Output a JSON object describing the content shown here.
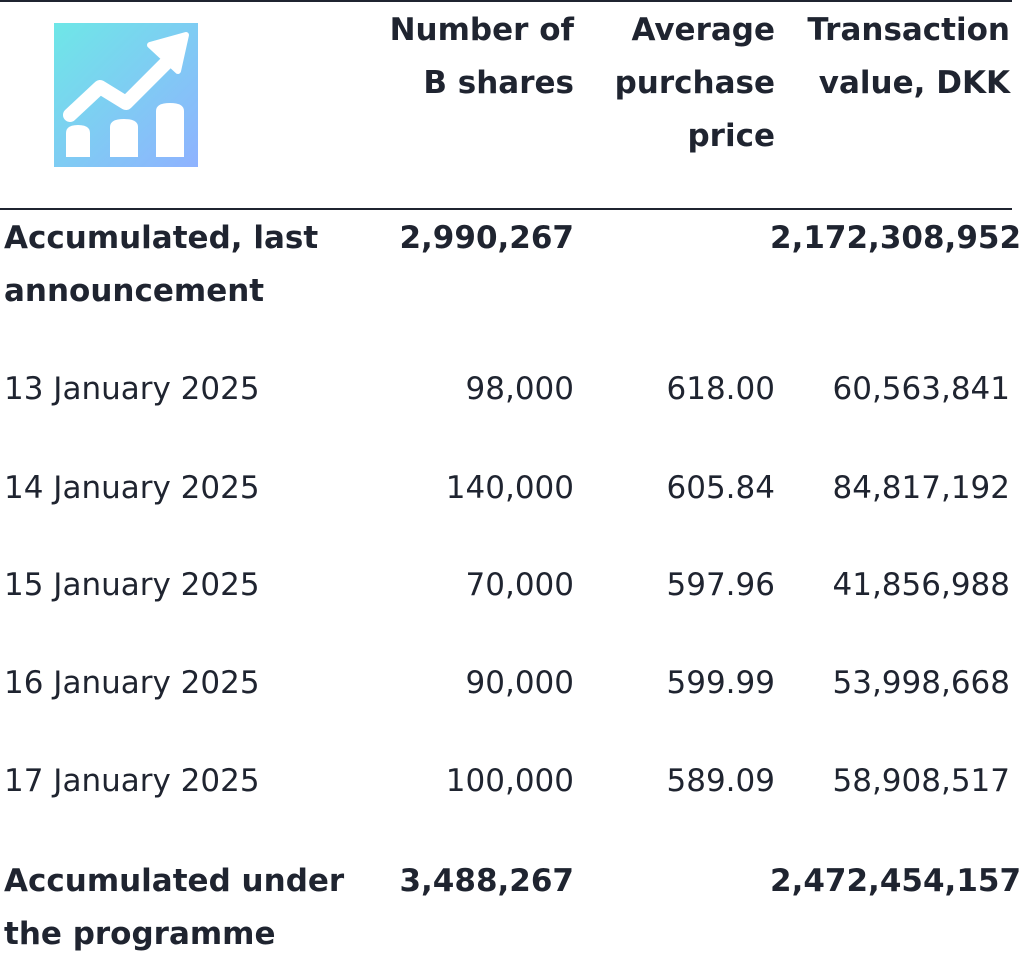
{
  "logo": {
    "icon": "rising-chart-icon",
    "gradient_start": "#6ee7e7",
    "gradient_end": "#8fb2ff"
  },
  "header": {
    "col1": [
      "Number of",
      "B shares"
    ],
    "col2": [
      "Average",
      "purchase",
      "price"
    ],
    "col3": [
      "Transaction",
      "value, DKK"
    ]
  },
  "rows": [
    {
      "label": [
        "Accumulated, last",
        "announcement"
      ],
      "shares": "2,990,267",
      "price": "",
      "value": "2,172,308,952",
      "bold": true
    },
    {
      "label": [
        "13 January 2025"
      ],
      "shares": "98,000",
      "price": "618.00",
      "value": "60,563,841",
      "bold": false
    },
    {
      "label": [
        "14 January 2025"
      ],
      "shares": "140,000",
      "price": "605.84",
      "value": "84,817,192",
      "bold": false
    },
    {
      "label": [
        "15 January 2025"
      ],
      "shares": "70,000",
      "price": "597.96",
      "value": "41,856,988",
      "bold": false
    },
    {
      "label": [
        "16 January 2025"
      ],
      "shares": "90,000",
      "price": "599.99",
      "value": "53,998,668",
      "bold": false
    },
    {
      "label": [
        "17 January 2025"
      ],
      "shares": "100,000",
      "price": "589.09",
      "value": "58,908,517",
      "bold": false
    },
    {
      "label": [
        "Accumulated under",
        "the programme"
      ],
      "shares": "3,488,267",
      "price": "",
      "value": "2,472,454,157",
      "bold": true
    }
  ]
}
